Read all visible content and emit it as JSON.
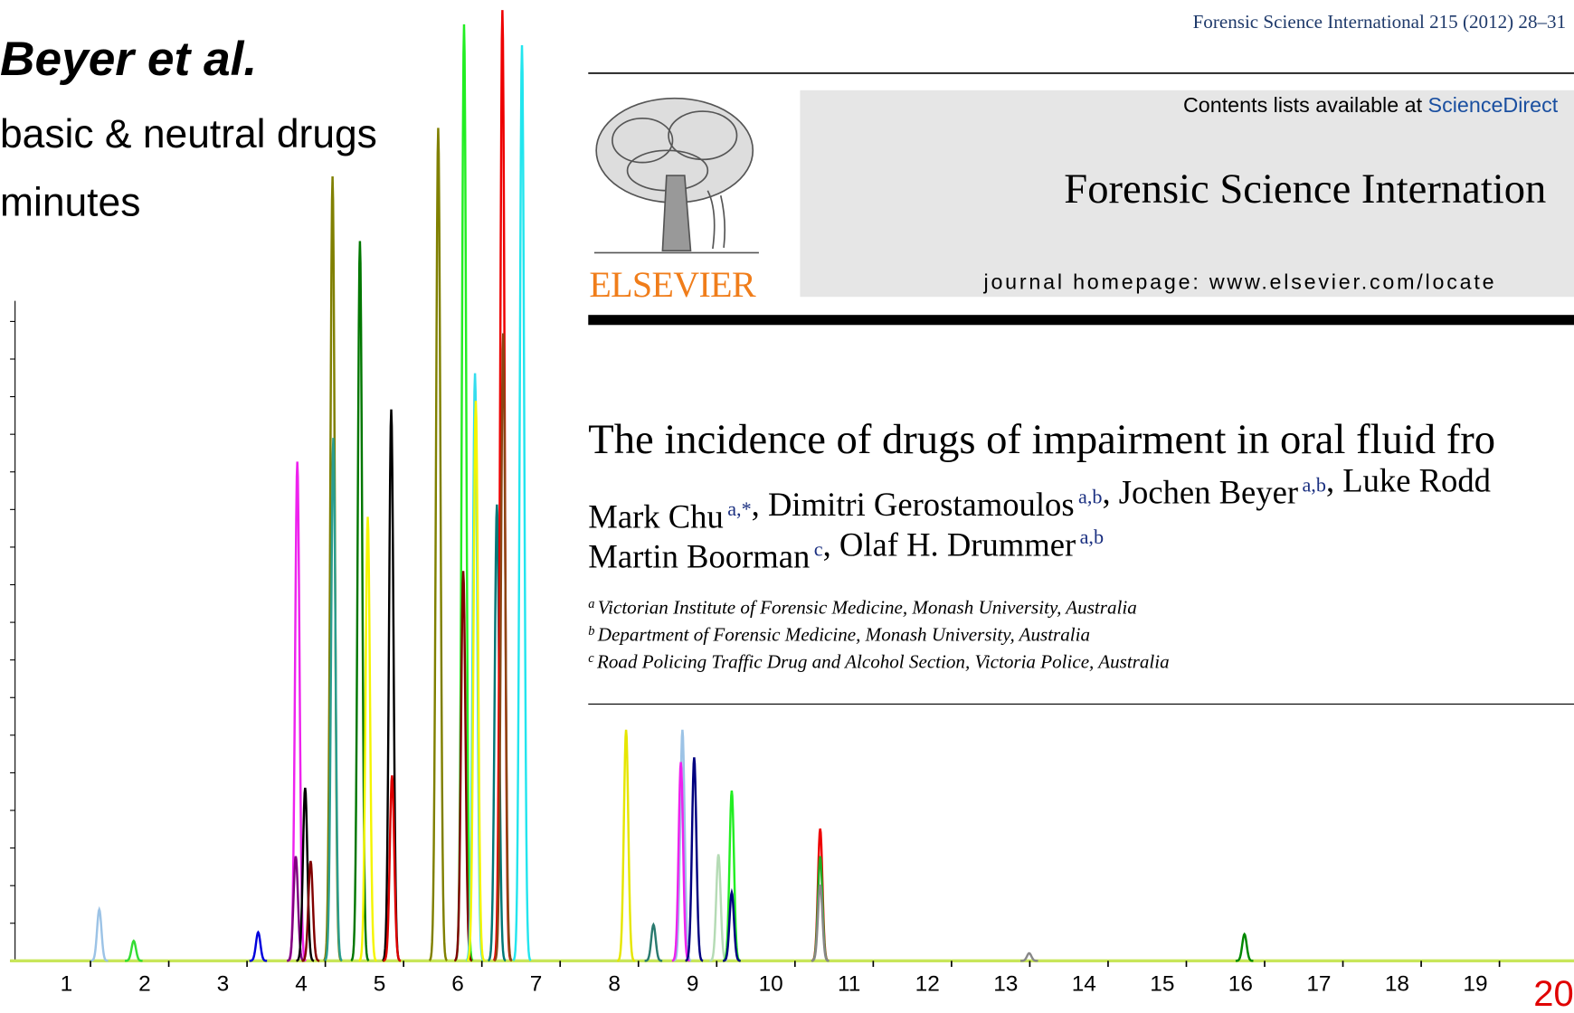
{
  "slide": {
    "title": "Beyer et al.",
    "bullets": [
      "basic & neutral drugs",
      "minutes"
    ]
  },
  "paper": {
    "citation": "Forensic Science International 215 (2012) 28–31",
    "publisher": "ELSEVIER",
    "contents_prefix": "Contents lists available at ",
    "contents_link": "ScienceDirect",
    "journal": "Forensic Science Internation",
    "homepage": "journal homepage: www.elsevier.com/locate",
    "title": "The incidence of drugs of impairment in oral fluid fro",
    "authors_line1": [
      {
        "text": "Mark Chu",
        "sup": "a,*"
      },
      {
        "text": ", Dimitri Gerostamoulos",
        "sup": "a,b"
      },
      {
        "text": ", Jochen Beyer",
        "sup": "a,b"
      },
      {
        "text": ", Luke Rodd"
      }
    ],
    "authors_line2": [
      {
        "text": "Martin Boorman",
        "sup": "c"
      },
      {
        "text": ", Olaf H. Drummer",
        "sup": "a,b"
      }
    ],
    "affiliations": [
      {
        "sup": "a",
        "text": "Victorian Institute of Forensic Medicine, Monash University, Australia"
      },
      {
        "sup": "b",
        "text": "Department of Forensic Medicine, Monash University, Australia"
      },
      {
        "sup": "c",
        "text": "Road Policing Traffic Drug and Alcohol Section, Victoria Police, Australia"
      }
    ]
  },
  "chart_data": {
    "type": "chromatogram",
    "xlim": [
      0.28,
      20.26
    ],
    "xticks": [
      1,
      2,
      3,
      4,
      5,
      6,
      7,
      8,
      9,
      10,
      11,
      12,
      13,
      14,
      15,
      16,
      17,
      18,
      19,
      20
    ],
    "ylim": [
      0,
      100
    ],
    "peaks": [
      {
        "x": 1.42,
        "height": 5.4,
        "color": "#9cc3e6"
      },
      {
        "x": 1.86,
        "height": 2.1,
        "color": "#33dd33"
      },
      {
        "x": 3.45,
        "height": 3.0,
        "color": "#0000dd"
      },
      {
        "x": 3.95,
        "height": 52.5,
        "color": "#ee22ee"
      },
      {
        "x": 3.93,
        "height": 11.0,
        "color": "#800080"
      },
      {
        "x": 4.05,
        "height": 18.2,
        "color": "#000000"
      },
      {
        "x": 4.12,
        "height": 10.5,
        "color": "#800000"
      },
      {
        "x": 4.4,
        "height": 82.5,
        "color": "#808000"
      },
      {
        "x": 4.41,
        "height": 55.0,
        "color": "#2a9d8f"
      },
      {
        "x": 4.75,
        "height": 75.7,
        "color": "#007700"
      },
      {
        "x": 4.85,
        "height": 46.7,
        "color": "#f5f500"
      },
      {
        "x": 5.15,
        "height": 58.0,
        "color": "#000000"
      },
      {
        "x": 5.16,
        "height": 19.5,
        "color": "#dd0000"
      },
      {
        "x": 5.75,
        "height": 87.6,
        "color": "#808000"
      },
      {
        "x": 6.08,
        "height": 98.5,
        "color": "#22ee22"
      },
      {
        "x": 6.07,
        "height": 41.0,
        "color": "#800000"
      },
      {
        "x": 6.22,
        "height": 61.8,
        "color": "#33ddee"
      },
      {
        "x": 6.23,
        "height": 58.9,
        "color": "#f5f500"
      },
      {
        "x": 6.5,
        "height": 48.0,
        "color": "#007777"
      },
      {
        "x": 6.57,
        "height": 100,
        "color": "#ee0000"
      },
      {
        "x": 6.58,
        "height": 66.0,
        "color": "#8b4513"
      },
      {
        "x": 6.82,
        "height": 96.3,
        "color": "#22e5ee"
      },
      {
        "x": 8.15,
        "height": 24.3,
        "color": "#e6e600"
      },
      {
        "x": 8.5,
        "height": 3.8,
        "color": "#2a7a6f"
      },
      {
        "x": 8.87,
        "height": 24.3,
        "color": "#9cc3e6"
      },
      {
        "x": 8.85,
        "height": 20.9,
        "color": "#ee22ee"
      },
      {
        "x": 9.02,
        "height": 21.4,
        "color": "#000080"
      },
      {
        "x": 9.33,
        "height": 11.2,
        "color": "#b5dbb5"
      },
      {
        "x": 9.5,
        "height": 17.9,
        "color": "#22ee22"
      },
      {
        "x": 9.5,
        "height": 7.2,
        "color": "#000080"
      },
      {
        "x": 10.63,
        "height": 13.9,
        "color": "#ee0000"
      },
      {
        "x": 10.63,
        "height": 11.0,
        "color": "#22aa22"
      },
      {
        "x": 10.63,
        "height": 8.0,
        "color": "#888888"
      },
      {
        "x": 13.3,
        "height": 0.8,
        "color": "#888888"
      },
      {
        "x": 16.05,
        "height": 2.8,
        "color": "#008800"
      }
    ]
  }
}
